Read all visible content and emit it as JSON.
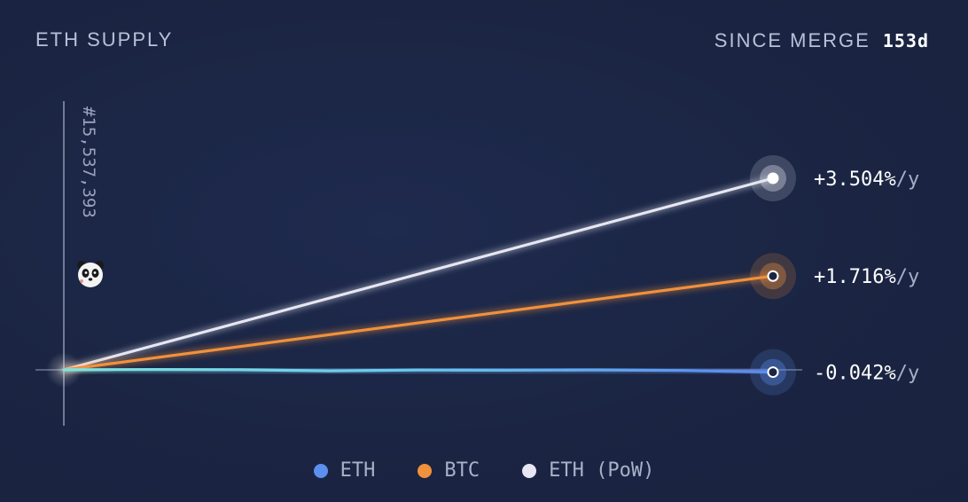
{
  "header": {
    "title": "ETH SUPPLY",
    "since_label": "SINCE MERGE",
    "since_value": "153d"
  },
  "block_label": "#15,537,393",
  "mascot_icon": "panda-icon",
  "chart_data": {
    "type": "line",
    "title": "ETH SUPPLY",
    "x": [
      0,
      0.125,
      0.25,
      0.375,
      0.5,
      0.625,
      0.75,
      0.875,
      1.0
    ],
    "xlabel": "",
    "ylabel": "",
    "ylim": [
      -0.1,
      4.1
    ],
    "series": [
      {
        "name": "ETH",
        "color": "#5c8ff0",
        "values": [
          0,
          0.006,
          0.002,
          -0.018,
          -0.004,
          -0.006,
          -0.002,
          -0.012,
          -0.042
        ],
        "end_label": "-0.042%",
        "unit": "/y"
      },
      {
        "name": "BTC",
        "color": "#f0913c",
        "values": [
          0,
          0.2145,
          0.429,
          0.6435,
          0.858,
          1.0725,
          1.287,
          1.5015,
          1.716
        ],
        "end_label": "+1.716%",
        "unit": "/y"
      },
      {
        "name": "ETH (PoW)",
        "color": "#e6e7f2",
        "values": [
          0,
          0.438,
          0.876,
          1.314,
          1.752,
          2.19,
          2.628,
          3.066,
          3.504
        ],
        "end_label": "+3.504%",
        "unit": "/y"
      }
    ],
    "legend": {
      "position": "bottom"
    },
    "grid": false
  }
}
